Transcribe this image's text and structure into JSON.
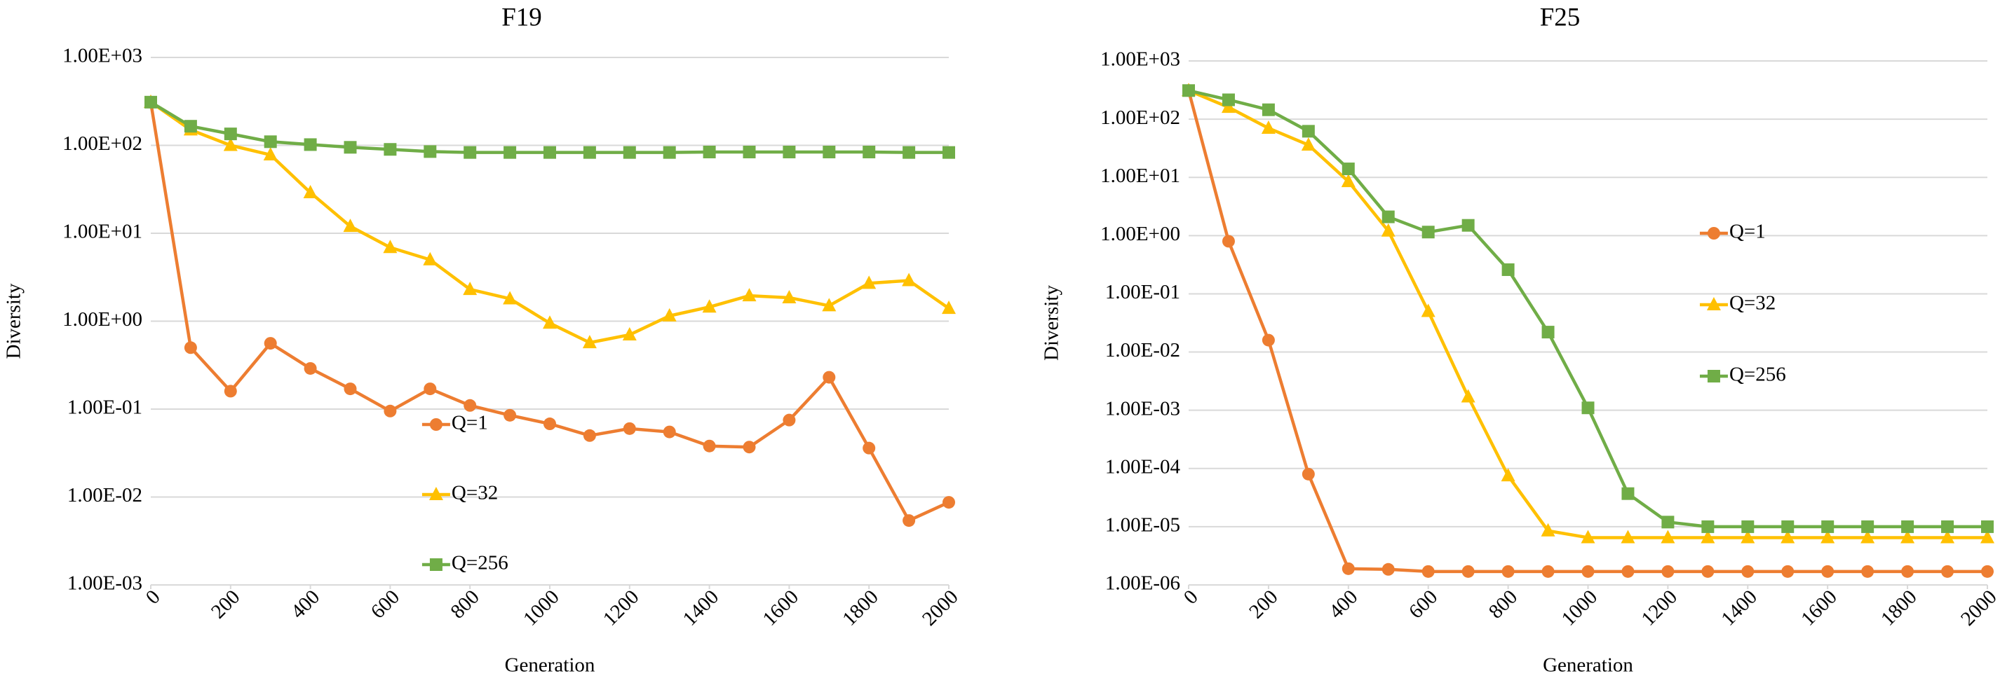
{
  "chart_data": [
    {
      "type": "line",
      "title": "F19",
      "x_label": "Generation",
      "y_label": "Diversity",
      "x": [
        0,
        100,
        200,
        300,
        400,
        500,
        600,
        700,
        800,
        900,
        1000,
        1100,
        1200,
        1300,
        1400,
        1500,
        1600,
        1700,
        1800,
        1900,
        2000
      ],
      "series": [
        {
          "name": "Q=1",
          "color": "#ed7d31",
          "marker": "circle",
          "values": [
            310,
            0.5,
            0.16,
            0.56,
            0.29,
            0.17,
            0.095,
            0.17,
            0.11,
            0.085,
            0.068,
            0.05,
            0.06,
            0.055,
            0.038,
            0.037,
            0.075,
            0.23,
            0.036,
            0.0054,
            0.0087
          ]
        },
        {
          "name": "Q=32",
          "color": "#ffc000",
          "marker": "triangle",
          "values": [
            310,
            150,
            100,
            78,
            29,
            12,
            6.9,
            5.0,
            2.3,
            1.8,
            0.95,
            0.57,
            0.7,
            1.15,
            1.45,
            1.95,
            1.85,
            1.5,
            2.7,
            2.9,
            1.4
          ]
        },
        {
          "name": "Q=256",
          "color": "#70ad47",
          "marker": "square",
          "values": [
            310,
            165,
            135,
            110,
            102,
            95,
            90,
            85,
            83,
            83,
            83,
            83,
            83,
            83,
            84,
            84,
            84,
            84,
            84,
            83,
            83
          ]
        }
      ],
      "xlim": [
        0,
        2000
      ],
      "xticks": [
        0,
        200,
        400,
        600,
        800,
        1000,
        1200,
        1400,
        1600,
        1800,
        2000
      ],
      "ylim": [
        0.001,
        1000
      ],
      "log_scale": true,
      "grid": true,
      "legend": "lower center",
      "yticks": [
        {
          "value": 0.001,
          "label": "1.00E-03"
        },
        {
          "value": 0.01,
          "label": "1.00E-02"
        },
        {
          "value": 0.1,
          "label": "1.00E-01"
        },
        {
          "value": 1,
          "label": "1.00E+00"
        },
        {
          "value": 10,
          "label": "1.00E+01"
        },
        {
          "value": 100,
          "label": "1.00E+02"
        },
        {
          "value": 1000,
          "label": "1.00E+03"
        }
      ]
    },
    {
      "type": "line",
      "title": "F25",
      "x_label": "Generation",
      "y_label": "Diversity",
      "x": [
        0,
        100,
        200,
        300,
        400,
        500,
        600,
        700,
        800,
        900,
        1000,
        1100,
        1200,
        1300,
        1400,
        1500,
        1600,
        1700,
        1800,
        1900,
        2000
      ],
      "series": [
        {
          "name": "Q=1",
          "color": "#ed7d31",
          "marker": "circle",
          "values": [
            310,
            0.8,
            0.016,
            8e-05,
            1.9e-06,
            1.85e-06,
            1.7e-06,
            1.7e-06,
            1.7e-06,
            1.7e-06,
            1.7e-06,
            1.7e-06,
            1.7e-06,
            1.7e-06,
            1.7e-06,
            1.7e-06,
            1.7e-06,
            1.7e-06,
            1.7e-06,
            1.7e-06,
            1.7e-06
          ]
        },
        {
          "name": "Q=32",
          "color": "#ffc000",
          "marker": "triangle",
          "values": [
            310,
            160,
            70,
            36,
            8.5,
            1.2,
            0.05,
            0.0017,
            7.5e-05,
            8.5e-06,
            6.5e-06,
            6.5e-06,
            6.5e-06,
            6.5e-06,
            6.5e-06,
            6.5e-06,
            6.5e-06,
            6.5e-06,
            6.5e-06,
            6.5e-06,
            6.5e-06
          ]
        },
        {
          "name": "Q=256",
          "color": "#70ad47",
          "marker": "square",
          "values": [
            310,
            215,
            145,
            62,
            14,
            2.1,
            1.15,
            1.5,
            0.26,
            0.022,
            0.0011,
            3.7e-05,
            1.2e-05,
            1e-05,
            1e-05,
            1e-05,
            1e-05,
            1e-05,
            1e-05,
            1e-05,
            1e-05
          ]
        }
      ],
      "xlim": [
        0,
        2000
      ],
      "xticks": [
        0,
        200,
        400,
        600,
        800,
        1000,
        1200,
        1400,
        1600,
        1800,
        2000
      ],
      "ylim": [
        1e-06,
        1000
      ],
      "log_scale": true,
      "grid": true,
      "legend": "center right",
      "yticks": [
        {
          "value": 1e-06,
          "label": "1.00E-06"
        },
        {
          "value": 1e-05,
          "label": "1.00E-05"
        },
        {
          "value": 0.0001,
          "label": "1.00E-04"
        },
        {
          "value": 0.001,
          "label": "1.00E-03"
        },
        {
          "value": 0.01,
          "label": "1.00E-02"
        },
        {
          "value": 0.1,
          "label": "1.00E-01"
        },
        {
          "value": 1,
          "label": "1.00E+00"
        },
        {
          "value": 10,
          "label": "1.00E+01"
        },
        {
          "value": 100,
          "label": "1.00E+02"
        },
        {
          "value": 1000,
          "label": "1.00E+03"
        }
      ]
    }
  ]
}
